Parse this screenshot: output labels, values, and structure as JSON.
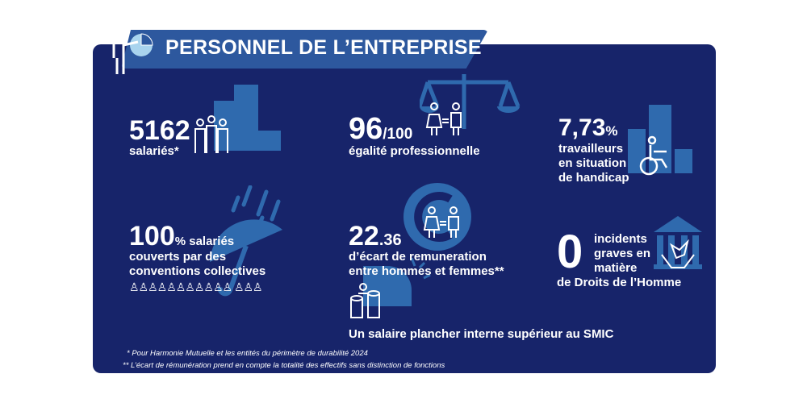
{
  "header": {
    "title": "PERSONNEL DE L’ENTREPRISE"
  },
  "stats": [
    {
      "value": "5162",
      "label": "salariés*"
    },
    {
      "value": "96",
      "suffix": "/100",
      "label": "égalité professionnelle"
    },
    {
      "value": "7,73",
      "suffix": "%",
      "label_lines": [
        "travailleurs",
        "en situation",
        "de handicap"
      ]
    },
    {
      "value": "100",
      "suffix": "% salariés",
      "label_lines": [
        "couverts par des",
        "conventions collectives"
      ]
    },
    {
      "value": "22",
      "suffix": ".36",
      "label_lines": [
        "d’écart de remuneration",
        "entre hommes et femmes**"
      ]
    },
    {
      "value": "0",
      "label_lines": [
        "incidents",
        "graves en",
        "matière"
      ],
      "label_bottom": "de Droits de l’Homme"
    },
    {
      "label": "Un salaire plancher interne supérieur au SMIC"
    }
  ],
  "footnotes": [
    "* Pour Harmonie Mutuelle et les entités du périmètre de durabilité 2024",
    "** L’écart de rémunération prend en compte la totalité des effectifs sans distinction de fonctions"
  ],
  "colors": {
    "panel": "#17246a",
    "banner": "#2d589e",
    "icon": "#2f6aae"
  }
}
